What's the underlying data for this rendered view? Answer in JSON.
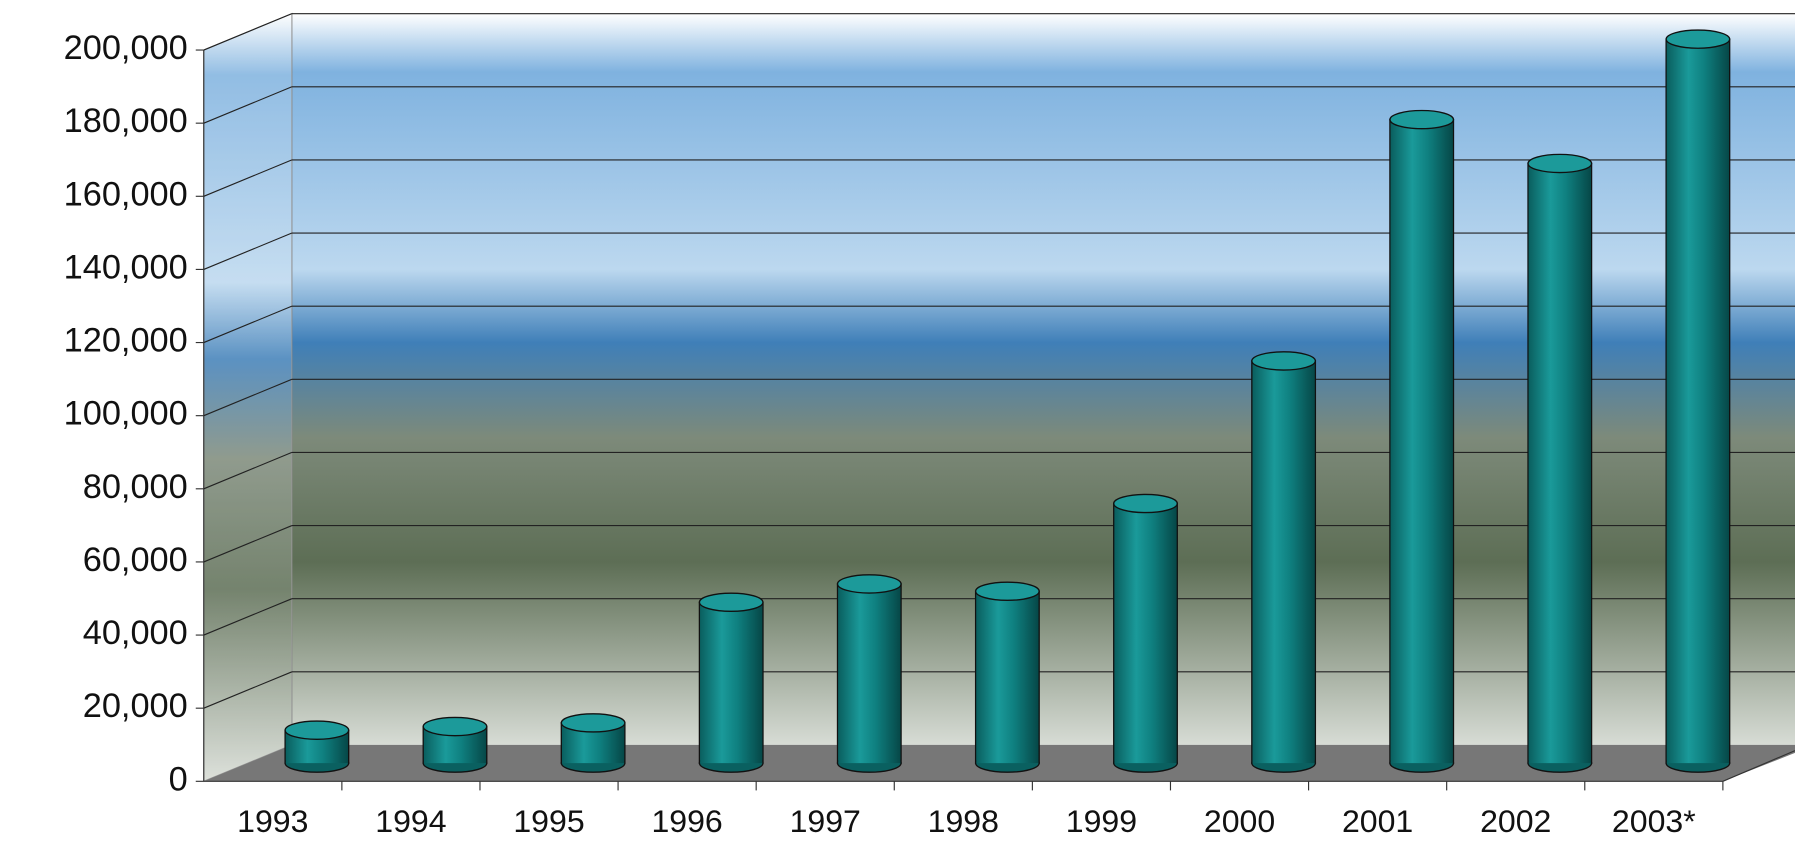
{
  "chart_data": {
    "type": "bar",
    "categories": [
      "1993",
      "1994",
      "1995",
      "1996",
      "1997",
      "1998",
      "1999",
      "2000",
      "2001",
      "2002",
      "2003*"
    ],
    "values": [
      9000,
      10000,
      11000,
      44000,
      49000,
      47000,
      71000,
      110000,
      176000,
      164000,
      198000
    ],
    "color": "#0f7f7f",
    "ylim": [
      0,
      200000
    ],
    "yticks": [
      0,
      {
        "value": 20000,
        "label": "20,000"
      },
      {
        "value": 40000,
        "label": "40,000"
      },
      {
        "value": 60000,
        "label": "60,000"
      },
      {
        "value": 80000,
        "label": "80,000"
      },
      {
        "value": 100000,
        "label": "100,000"
      },
      {
        "value": 120000,
        "label": "120,000"
      },
      {
        "value": 140000,
        "label": "140,000"
      },
      {
        "value": 160000,
        "label": "160,000"
      },
      {
        "value": 180000,
        "label": "180,000"
      },
      {
        "value": 200000,
        "label": "200,000"
      }
    ],
    "grid": true
  }
}
